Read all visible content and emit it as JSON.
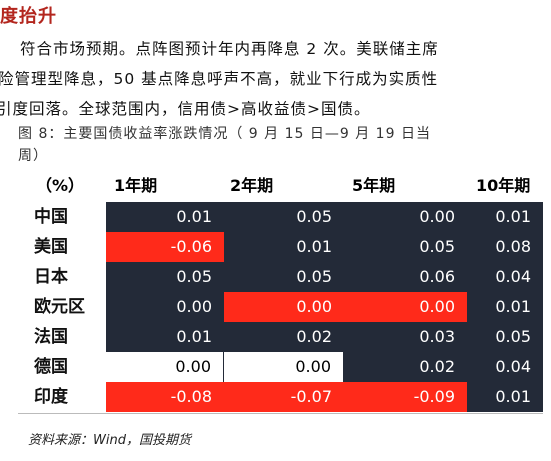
{
  "heading": "度抬升",
  "paragraph": [
    "符合市场预期。点阵图预计年内再降息 2 次。美联储主席",
    "险管理型降息，50 基点降息呼声不高，就业下行成为实质性",
    "引度回落。全球范围内，信用债>高收益债>国债。"
  ],
  "caption": [
    "图 8：主要国债收益率涨跌情况（ 9 月 15 日—9 月 19 日当",
    "周）"
  ],
  "table": {
    "unit_label": "（%）",
    "columns": [
      "1年期",
      "2年期",
      "5年期",
      "10年期"
    ],
    "rows": [
      {
        "label": "中国",
        "values": [
          "0.01",
          "0.05",
          "0.00",
          "0.01"
        ],
        "styles": [
          "dark",
          "dark",
          "dark",
          "dark"
        ]
      },
      {
        "label": "美国",
        "values": [
          "-0.06",
          "0.01",
          "0.05",
          "0.08"
        ],
        "styles": [
          "red",
          "dark",
          "dark",
          "dark"
        ]
      },
      {
        "label": "日本",
        "values": [
          "0.05",
          "0.05",
          "0.06",
          "0.04"
        ],
        "styles": [
          "dark",
          "dark",
          "dark",
          "dark"
        ]
      },
      {
        "label": "欧元区",
        "values": [
          "0.00",
          "0.00",
          "0.00",
          "0.01"
        ],
        "styles": [
          "dark",
          "red",
          "red",
          "dark"
        ]
      },
      {
        "label": "法国",
        "values": [
          "0.01",
          "0.02",
          "0.03",
          "0.05"
        ],
        "styles": [
          "dark",
          "dark",
          "dark",
          "dark"
        ]
      },
      {
        "label": "德国",
        "values": [
          "0.00",
          "0.00",
          "0.02",
          "0.04"
        ],
        "styles": [
          "white",
          "white",
          "dark",
          "dark"
        ]
      },
      {
        "label": "印度",
        "values": [
          "-0.08",
          "-0.07",
          "-0.09",
          "0.01"
        ],
        "styles": [
          "red",
          "red",
          "red",
          "dark"
        ]
      }
    ]
  },
  "colors": {
    "dark": "#232a38",
    "red": "#ff2a1a",
    "white": "#ffffff",
    "heading": "#b3261e"
  },
  "source": "资料来源：Wind，国投期货"
}
